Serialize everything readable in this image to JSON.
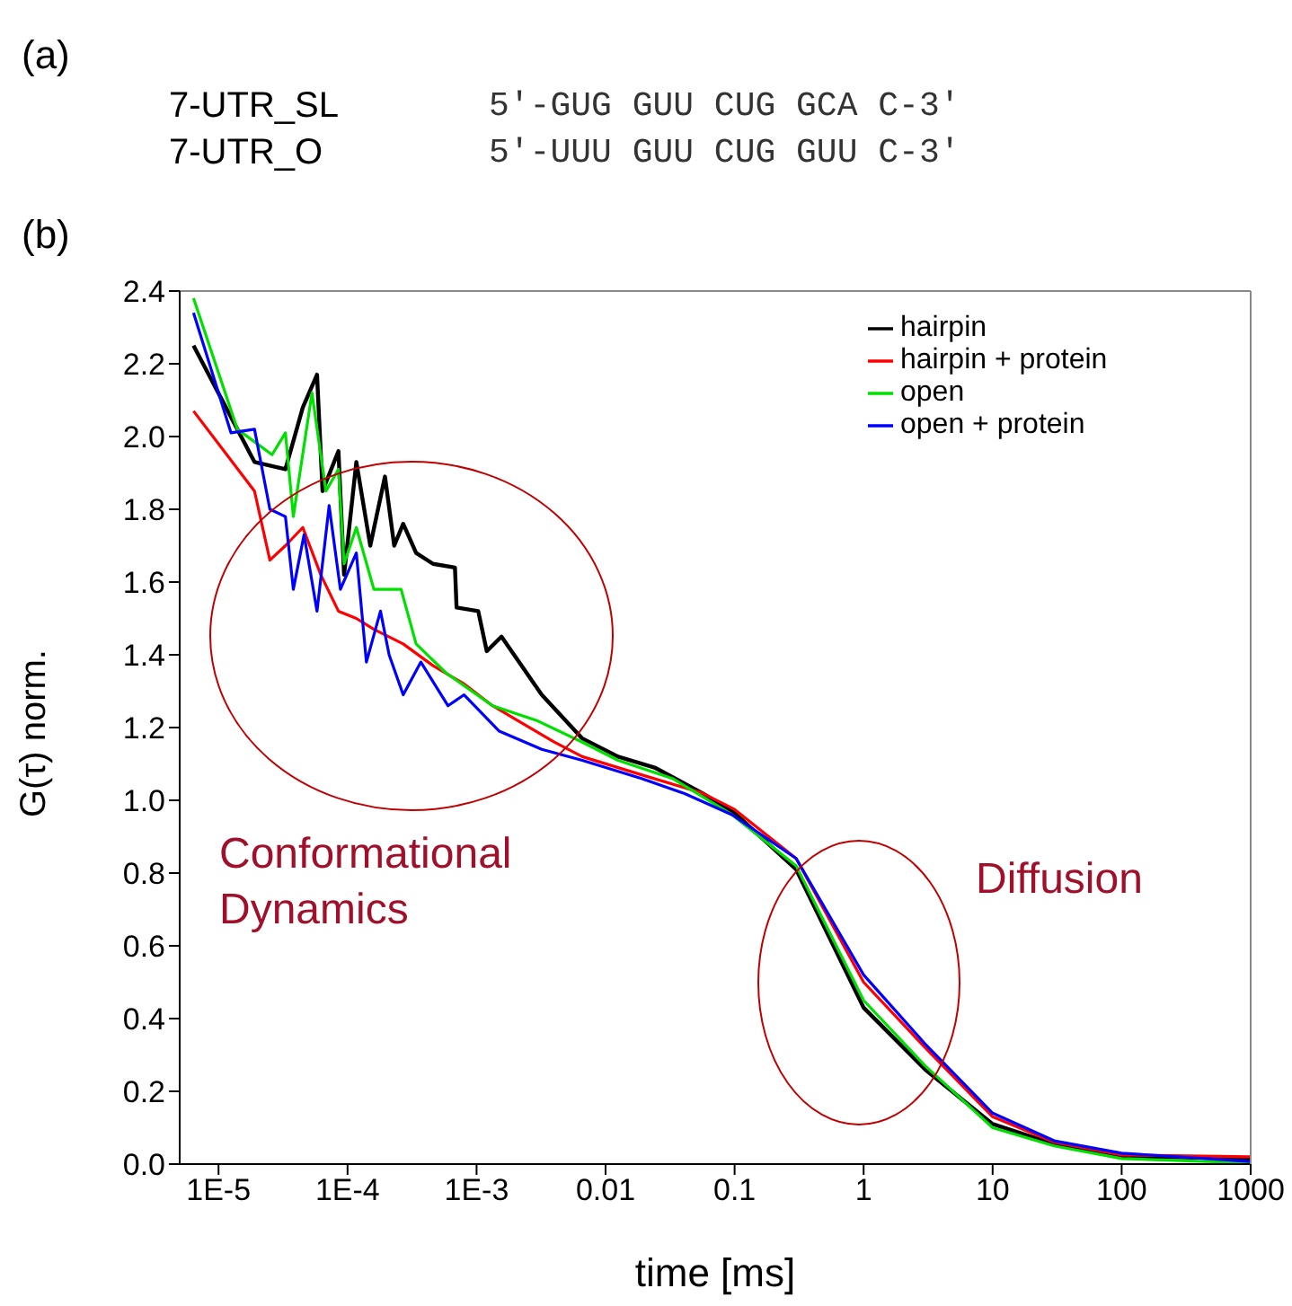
{
  "chart_data": {
    "type": "line",
    "xlabel": "time [ms]",
    "ylabel": "G(τ) norm.",
    "log": "x",
    "xlim": [
      5e-06,
      1000
    ],
    "ylim": [
      0,
      2.4
    ],
    "xticks": [
      {
        "value": 1e-05,
        "label": "1E-5"
      },
      {
        "value": 0.0001,
        "label": "1E-4"
      },
      {
        "value": 0.001,
        "label": "1E-3"
      },
      0.01,
      0.1,
      1,
      10,
      100,
      1000
    ],
    "yticks": [
      {
        "value": 0,
        "label": "0.0"
      },
      {
        "value": 0.2,
        "label": "0.2"
      },
      {
        "value": 0.4,
        "label": "0.4"
      },
      {
        "value": 0.6,
        "label": "0.6"
      },
      {
        "value": 0.8,
        "label": "0.8"
      },
      {
        "value": 1,
        "label": "1.0"
      },
      {
        "value": 1.2,
        "label": "1.2"
      },
      {
        "value": 1.4,
        "label": "1.4"
      },
      {
        "value": 1.6,
        "label": "1.6"
      },
      {
        "value": 1.8,
        "label": "1.8"
      },
      {
        "value": 2,
        "label": "2.0"
      },
      {
        "value": 2.2,
        "label": "2.2"
      },
      {
        "value": 2.4,
        "label": "2.4"
      }
    ],
    "grid": false,
    "legend": "top right",
    "marker": "none",
    "line_style": "solid",
    "annotations": [
      "(a)",
      "7-UTR_SL",
      "5′-GUG GUU CUG GCA C-3′",
      "7-UTR_O",
      "5′-UUU GUU CUG GUU C-3′",
      "(b)",
      "Conformational Dynamics",
      "Diffusion"
    ],
    "series": [
      {
        "name": "hairpin",
        "color": "#000000",
        "x": [
          6.4e-06,
          1.9e-05,
          3.3e-05,
          4.5e-05,
          5.8e-05,
          6.4e-05,
          8.5e-05,
          9.4e-05,
          0.000117,
          0.00015,
          0.000195,
          0.00023,
          0.00027,
          0.00034,
          0.00046,
          0.00068,
          0.0007,
          0.00103,
          0.0012,
          0.00156,
          0.0032,
          0.0066,
          0.0125,
          0.024,
          0.056,
          0.1,
          0.3,
          1,
          3,
          10,
          30,
          100,
          1000
        ],
        "values": [
          2.25,
          1.93,
          1.91,
          2.08,
          2.17,
          1.85,
          1.96,
          1.62,
          1.93,
          1.7,
          1.89,
          1.7,
          1.76,
          1.68,
          1.65,
          1.64,
          1.53,
          1.52,
          1.41,
          1.45,
          1.29,
          1.17,
          1.12,
          1.09,
          1.02,
          0.965,
          0.81,
          0.43,
          0.26,
          0.11,
          0.055,
          0.022,
          0.015
        ]
      },
      {
        "name": "hairpin + protein",
        "color": "#ff0000",
        "x": [
          6.4e-06,
          1.9e-05,
          2.5e-05,
          3.3e-05,
          4.5e-05,
          6.2e-05,
          8.5e-05,
          0.000117,
          0.00016,
          0.00027,
          0.00046,
          0.0008,
          0.00133,
          0.0023,
          0.004,
          0.0066,
          0.019,
          0.056,
          0.1,
          0.3,
          1,
          3,
          10,
          30,
          100,
          1000
        ],
        "values": [
          2.07,
          1.85,
          1.66,
          1.7,
          1.75,
          1.62,
          1.52,
          1.5,
          1.47,
          1.43,
          1.37,
          1.32,
          1.26,
          1.21,
          1.16,
          1.12,
          1.07,
          1.02,
          0.975,
          0.84,
          0.5,
          0.32,
          0.13,
          0.06,
          0.025,
          0.02
        ]
      },
      {
        "name": "open",
        "color": "#00e000",
        "x": [
          6.4e-06,
          1.4e-05,
          2.6e-05,
          3.3e-05,
          3.8e-05,
          5.3e-05,
          6.8e-05,
          8.5e-05,
          9.4e-05,
          0.000117,
          0.00016,
          0.00026,
          0.00034,
          0.00058,
          0.00133,
          0.0029,
          0.0066,
          0.0125,
          0.033,
          0.096,
          0.3,
          1,
          3,
          10,
          30,
          100,
          1000
        ],
        "values": [
          2.38,
          2.02,
          1.95,
          2.01,
          1.78,
          2.12,
          1.85,
          1.91,
          1.65,
          1.75,
          1.58,
          1.58,
          1.43,
          1.35,
          1.26,
          1.22,
          1.16,
          1.11,
          1.06,
          0.96,
          0.82,
          0.45,
          0.27,
          0.1,
          0.05,
          0.015,
          0.003
        ]
      },
      {
        "name": "open + protein",
        "color": "#0000ff",
        "x": [
          6.4e-06,
          1.25e-05,
          1.9e-05,
          2.5e-05,
          3.3e-05,
          3.8e-05,
          4.6e-05,
          5.8e-05,
          7.2e-05,
          8.8e-05,
          0.000117,
          0.00014,
          0.00018,
          0.00021,
          0.00027,
          0.00037,
          0.0006,
          0.0008,
          0.0015,
          0.0032,
          0.0066,
          0.019,
          0.04,
          0.096,
          0.3,
          1,
          3,
          10,
          30,
          100,
          1000
        ],
        "values": [
          2.34,
          2.01,
          2.02,
          1.8,
          1.78,
          1.58,
          1.73,
          1.52,
          1.81,
          1.58,
          1.68,
          1.38,
          1.52,
          1.4,
          1.29,
          1.38,
          1.26,
          1.29,
          1.19,
          1.14,
          1.11,
          1.06,
          1.02,
          0.96,
          0.84,
          0.52,
          0.33,
          0.14,
          0.064,
          0.03,
          0.007
        ]
      }
    ]
  }
}
